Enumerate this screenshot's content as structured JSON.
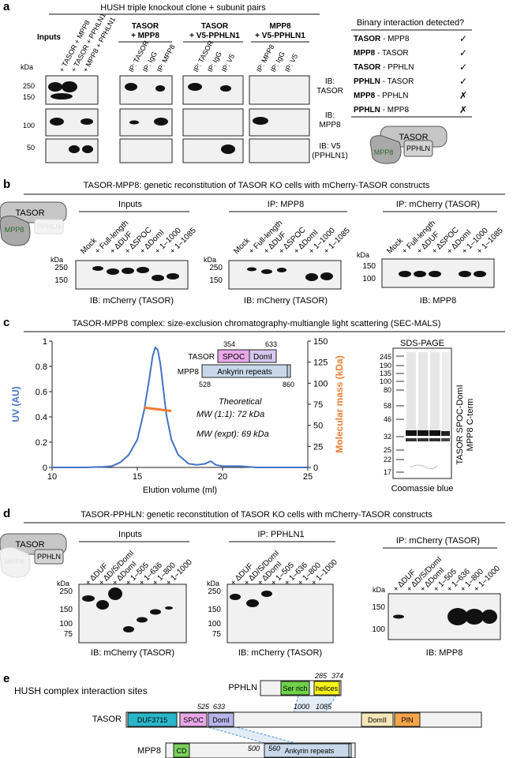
{
  "a": {
    "label": "a",
    "header": "HUSH triple knockout clone + subunit pairs",
    "inputs_title": "Inputs",
    "kda": "kDa",
    "groups": [
      {
        "title_line1": "TASOR",
        "title_line2": "+ MPP8"
      },
      {
        "title_line1": "TASOR",
        "title_line2": "+ V5-PPHLN1"
      },
      {
        "title_line1": "MPP8",
        "title_line2": "+ V5-PPHLN1"
      }
    ],
    "input_lanes": [
      "+ TASOR + MPP8",
      "+ TASOR + PPHLN1",
      "+ MPP8 + PPHLN1"
    ],
    "group_lanes": [
      [
        "IP: TASOR",
        "IP: IgG",
        "IP: MPP8"
      ],
      [
        "IP: TASOR",
        "IP: IgG",
        "IP: V5"
      ],
      [
        "IP: MPP8",
        "IP: IgG",
        "IP: V5"
      ]
    ],
    "rows": [
      {
        "mw": [
          "250",
          "150"
        ],
        "ib_line1": "IB:",
        "ib_line2": "TASOR"
      },
      {
        "mw": [
          "100"
        ],
        "ib_line1": "IB:",
        "ib_line2": "MPP8"
      },
      {
        "mw": [
          "50"
        ],
        "ib_line1": "IB: V5",
        "ib_line2": "(PPHLN1)"
      }
    ],
    "binary_title": "Binary interaction detected?",
    "binary": [
      {
        "bait": "TASOR",
        "prey": " - MPP8",
        "mark": "✓"
      },
      {
        "bait": "MPP8",
        "prey": " - TASOR",
        "mark": "✓"
      },
      {
        "bait": "TASOR",
        "prey": " - PPHLN",
        "mark": "✓"
      },
      {
        "bait": "PPHLN",
        "prey": " - TASOR",
        "mark": "✓"
      },
      {
        "bait": "MPP8",
        "prey": " - PPHLN",
        "mark": "✗"
      },
      {
        "bait": "PPHLN",
        "prey": " - MPP8",
        "mark": "✗"
      }
    ],
    "cartoon": {
      "tasor": "TASOR",
      "mpp8": "MPP8",
      "pphln": "PPHLN"
    }
  },
  "b": {
    "label": "b",
    "header": "TASOR-MPP8: genetic reconstitution of TASOR KO cells with mCherry-TASOR constructs",
    "cartoon": {
      "tasor": "TASOR",
      "mpp8": "MPP8",
      "pphln": "PPHLN"
    },
    "kda": "kDa",
    "lanes": [
      "Mock",
      "+ Full-length",
      "+ ΔDUF",
      "+ ΔSPOC",
      "+ ΔDomI",
      "+ 1–1000",
      "+ 1–1085"
    ],
    "panels": [
      {
        "title": "Inputs",
        "mw": [
          "250",
          "150"
        ],
        "ib": "IB: mCherry (TASOR)"
      },
      {
        "title": "IP: MPP8",
        "mw": [
          "250",
          "150"
        ],
        "ib": "IB: mCherry (TASOR)"
      },
      {
        "title": "IP: mCherry (TASOR)",
        "mw": [
          "150",
          "100"
        ],
        "ib": "IB: MPP8"
      }
    ]
  },
  "c": {
    "label": "c",
    "header": "TASOR-MPP8 complex: size-exclusion chromatography-multiangle light scattering (SEC-MALS)",
    "chart_data": {
      "type": "line",
      "title": "",
      "xlabel": "Elution volume (ml)",
      "ylabel": "UV (AU)",
      "y2label": "Molecular mass (kDa)",
      "xlim": [
        10,
        25
      ],
      "ylim": [
        0,
        1.0
      ],
      "y2lim": [
        0,
        150
      ],
      "xticks": [
        "10",
        "15",
        "20",
        "25"
      ],
      "yticks": [
        "0",
        "0.2",
        "0.4",
        "0.6",
        "0.8",
        "1"
      ],
      "y2ticks": [
        "0",
        "25",
        "50",
        "75",
        "100",
        "125",
        "150"
      ],
      "series": [
        {
          "name": "UV",
          "color": "#4472c4",
          "x": [
            10,
            12,
            13,
            13.5,
            14,
            14.5,
            15,
            15.4,
            15.7,
            15.9,
            16.05,
            16.2,
            16.35,
            16.5,
            16.7,
            17.0,
            17.4,
            18,
            18.5,
            19,
            19.3,
            19.6,
            20,
            21,
            22,
            25
          ],
          "y": [
            0.0,
            0.0,
            0.005,
            0.01,
            0.04,
            0.1,
            0.22,
            0.45,
            0.7,
            0.88,
            0.95,
            0.93,
            0.82,
            0.65,
            0.42,
            0.22,
            0.1,
            0.03,
            0.02,
            0.03,
            0.05,
            0.02,
            0.01,
            0.01,
            0.0,
            0.0
          ]
        },
        {
          "name": "Molecular mass",
          "color": "#ed7d31",
          "axis": "right",
          "x": [
            15.4,
            15.6,
            15.8,
            16.0,
            16.2,
            16.4,
            16.6,
            16.8,
            17.0
          ],
          "y": [
            71,
            70.5,
            70,
            69.5,
            69,
            68.5,
            68,
            67.5,
            67
          ]
        }
      ],
      "annotations": [
        "Theoretical",
        "MW (1:1): 72 kDa",
        "MW (expt): 69 kDa"
      ]
    },
    "domain_inset": {
      "tasor_label": "TASOR",
      "spoc": "SPOC",
      "domi": "DomI",
      "start": "354",
      "end": "633",
      "mpp8_label": "MPP8",
      "ankyrin": "Ankyrin repeats",
      "mpp8_start": "528",
      "mpp8_end": "860"
    },
    "gel": {
      "title": "SDS-PAGE",
      "markers": [
        "245",
        "190",
        "135",
        "100",
        "80",
        "58",
        "46",
        "32",
        "25",
        "22",
        "17"
      ],
      "legend_line1": "TASOR SPOC-DomI",
      "legend_line2": "MPP8 C-term",
      "caption": "Coomassie blue"
    }
  },
  "d": {
    "label": "d",
    "header": "TASOR-PPHLN: genetic reconstitution of TASOR KO cells with mCherry-TASOR constructs",
    "cartoon": {
      "tasor": "TASOR",
      "mpp8": "MPP8",
      "pphln": "PPHLN"
    },
    "kda": "kDa",
    "lanes": [
      "+ ΔDUF",
      "+ ΔD/S/DomI",
      "+ ΔDomI",
      "+ 1–505",
      "+ 1–636",
      "+ 1–800",
      "+ 1–1000"
    ],
    "panels": [
      {
        "title": "Inputs",
        "mw": [
          "250",
          "150",
          "100",
          "75"
        ],
        "ib": "IB: mCherry (TASOR)"
      },
      {
        "title": "IP: PPHLN1",
        "mw": [
          "250",
          "150",
          "100",
          "75"
        ],
        "ib": "IB: mCherry (TASOR)"
      },
      {
        "title": "IP: mCherry (TASOR)",
        "mw": [
          "150",
          "100"
        ],
        "ib": "IB: MPP8"
      }
    ]
  },
  "e": {
    "label": "e",
    "title": "HUSH complex interaction sites",
    "pphln": {
      "name": "PPHLN",
      "ser": "Ser rich",
      "helices": "helices",
      "n1": "285",
      "n2": "374"
    },
    "tasor": {
      "name": "TASOR",
      "duf": "DUF3715",
      "spoc": "SPOC",
      "domi": "DomI",
      "domii": "DomII",
      "pin": "PIN",
      "n1": "525",
      "n2": "633",
      "n3": "1000",
      "n4": "1085"
    },
    "mpp8": {
      "name": "MPP8",
      "cd": "CD",
      "ank": "Ankyrin repeats",
      "n1": "500",
      "n2": "560"
    },
    "colors": {
      "duf": "#29b6c9",
      "spoc": "#e8a8e8",
      "domi": "#b8b4ea",
      "domii": "#f6e6b8",
      "pin": "#f5a44a",
      "ser": "#6fd24a",
      "helices": "#f5f51a",
      "cd": "#7ad05a",
      "ank": "#c8d8ea",
      "line": "#4a90d0"
    }
  }
}
